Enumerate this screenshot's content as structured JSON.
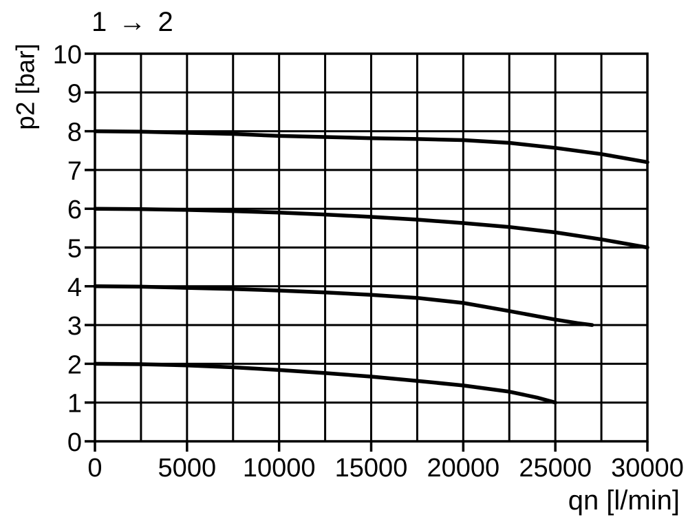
{
  "page": {
    "background_color": "#ffffff",
    "foreground_color": "#000000"
  },
  "chart": {
    "title": "1 → 2",
    "x_axis_label": "qn [l/min]",
    "y_axis_label": "p2 [bar]"
  },
  "chart_data": {
    "type": "line",
    "title": "1 → 2",
    "xlabel": "qn [l/min]",
    "ylabel": "p2 [bar]",
    "xlim": [
      0,
      30000
    ],
    "ylim": [
      0,
      10
    ],
    "x_grid_step": 2500,
    "y_grid_step": 1,
    "x_tick_step": 5000,
    "y_tick_step": 1,
    "x_tick_labels": [
      "0",
      "5000",
      "10000",
      "15000",
      "20000",
      "25000",
      "30000"
    ],
    "y_tick_labels": [
      "0",
      "1",
      "2",
      "3",
      "4",
      "5",
      "6",
      "7",
      "8",
      "9",
      "10"
    ],
    "grid": true,
    "legend": false,
    "line_color": "#000000",
    "series": [
      {
        "name": "curve-8bar",
        "points": [
          [
            0,
            8.0
          ],
          [
            2500,
            7.99
          ],
          [
            5000,
            7.96
          ],
          [
            7500,
            7.93
          ],
          [
            10000,
            7.88
          ],
          [
            12500,
            7.85
          ],
          [
            15000,
            7.82
          ],
          [
            17500,
            7.8
          ],
          [
            20000,
            7.77
          ],
          [
            22500,
            7.7
          ],
          [
            25000,
            7.57
          ],
          [
            27500,
            7.41
          ],
          [
            30000,
            7.2
          ]
        ]
      },
      {
        "name": "curve-6bar",
        "points": [
          [
            0,
            6.0
          ],
          [
            2500,
            5.99
          ],
          [
            5000,
            5.97
          ],
          [
            7500,
            5.94
          ],
          [
            10000,
            5.9
          ],
          [
            12500,
            5.85
          ],
          [
            15000,
            5.79
          ],
          [
            17500,
            5.72
          ],
          [
            20000,
            5.63
          ],
          [
            22500,
            5.53
          ],
          [
            25000,
            5.39
          ],
          [
            27500,
            5.21
          ],
          [
            30000,
            5.0
          ]
        ]
      },
      {
        "name": "curve-4bar",
        "points": [
          [
            0,
            4.0
          ],
          [
            2500,
            3.99
          ],
          [
            5000,
            3.96
          ],
          [
            7500,
            3.93
          ],
          [
            10000,
            3.89
          ],
          [
            12500,
            3.84
          ],
          [
            15000,
            3.78
          ],
          [
            17500,
            3.7
          ],
          [
            20000,
            3.57
          ],
          [
            22500,
            3.36
          ],
          [
            25000,
            3.14
          ],
          [
            26200,
            3.05
          ],
          [
            27000,
            3.0
          ]
        ]
      },
      {
        "name": "curve-2bar",
        "points": [
          [
            0,
            2.0
          ],
          [
            2500,
            1.99
          ],
          [
            5000,
            1.96
          ],
          [
            7500,
            1.91
          ],
          [
            10000,
            1.84
          ],
          [
            12500,
            1.76
          ],
          [
            15000,
            1.67
          ],
          [
            17500,
            1.56
          ],
          [
            20000,
            1.44
          ],
          [
            22500,
            1.28
          ],
          [
            24000,
            1.13
          ],
          [
            25000,
            1.0
          ]
        ]
      }
    ]
  }
}
